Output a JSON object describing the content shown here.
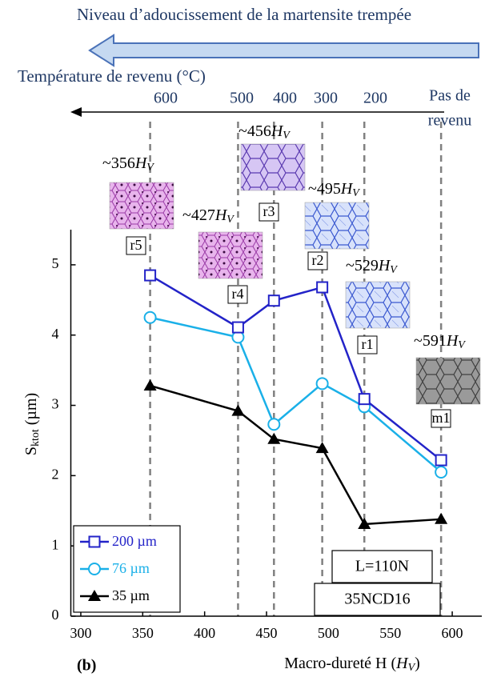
{
  "banner": "Niveau d’adoucissement de la martensite trempée",
  "top_axis": {
    "title": "Température de revenu (°C)",
    "labels": [
      600,
      500,
      400,
      300,
      200
    ],
    "end_label": [
      "Pas de",
      "revenu"
    ]
  },
  "chart_data": {
    "type": "line",
    "x": [
      356,
      427,
      456,
      495,
      529,
      591
    ],
    "series": [
      {
        "name": "200 µm",
        "color": "#2323c8",
        "marker": "square",
        "values": [
          4.85,
          4.11,
          4.49,
          4.68,
          3.09,
          2.22
        ]
      },
      {
        "name": "76 µm",
        "color": "#1ab0e8",
        "marker": "circle",
        "values": [
          4.25,
          3.97,
          2.73,
          3.31,
          2.98,
          2.05
        ]
      },
      {
        "name": "35 µm",
        "color": "#000000",
        "marker": "triangle",
        "values": [
          3.28,
          2.92,
          2.52,
          2.39,
          1.31,
          1.38
        ]
      }
    ],
    "xlim": [
      290,
      620
    ],
    "xticks": [
      300,
      350,
      400,
      450,
      500,
      550,
      600
    ],
    "ylim": [
      0,
      5.5
    ],
    "yticks": [
      0,
      1,
      2,
      3,
      4,
      5
    ],
    "x_label": {
      "text": "Macro-dureté H (",
      "unit": "H",
      "sub": "V",
      "close": ")"
    },
    "y_label": {
      "main": "S",
      "sub": "ktot",
      "unit": " (µm)"
    },
    "samples": [
      "r5",
      "r4",
      "r3",
      "r2",
      "r1",
      "m1"
    ],
    "hardness_labels": [
      "~356",
      "~427",
      "~456",
      "~495",
      "~529",
      "~591"
    ],
    "boxes": [
      "L=110N",
      "35NCD16"
    ],
    "panel": "(b)"
  }
}
